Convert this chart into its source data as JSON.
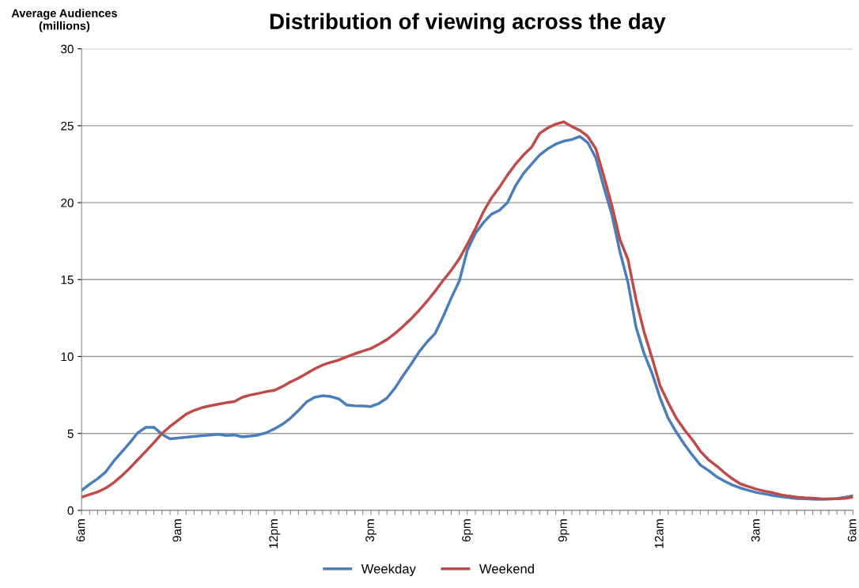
{
  "chart_data": {
    "type": "line",
    "title": "Distribution of viewing across the day",
    "ylabel": "Average Audiences\n(millions)",
    "categories": [
      "6am",
      null,
      null,
      null,
      null,
      null,
      null,
      null,
      null,
      null,
      null,
      null,
      "9am",
      null,
      null,
      null,
      null,
      null,
      null,
      null,
      null,
      null,
      null,
      null,
      "12pm",
      null,
      null,
      null,
      null,
      null,
      null,
      null,
      null,
      null,
      null,
      null,
      "3pm",
      null,
      null,
      null,
      null,
      null,
      null,
      null,
      null,
      null,
      null,
      null,
      "6pm",
      null,
      null,
      null,
      null,
      null,
      null,
      null,
      null,
      null,
      null,
      null,
      "9pm",
      null,
      null,
      null,
      null,
      null,
      null,
      null,
      null,
      null,
      null,
      null,
      "12am",
      null,
      null,
      null,
      null,
      null,
      null,
      null,
      null,
      null,
      null,
      null,
      "3am",
      null,
      null,
      null,
      null,
      null,
      null,
      null,
      null,
      null,
      null,
      null,
      "6am"
    ],
    "ylim": [
      0,
      30
    ],
    "yticks": [
      0,
      5,
      10,
      15,
      20,
      25,
      30
    ],
    "grid": "y",
    "legend": "bottom",
    "marker": "none",
    "line_style": "solid",
    "series": [
      {
        "name": "Weekday",
        "color": "#4a7ebb",
        "values": [
          1.3,
          1.7,
          2.06,
          2.5,
          3.2,
          3.8,
          4.4,
          5.05,
          5.4,
          5.4,
          4.95,
          4.65,
          4.7,
          4.75,
          4.8,
          4.86,
          4.9,
          4.95,
          4.87,
          4.9,
          4.78,
          4.83,
          4.9,
          5.05,
          5.3,
          5.6,
          6.0,
          6.5,
          7.05,
          7.35,
          7.45,
          7.4,
          7.25,
          6.85,
          6.8,
          6.78,
          6.75,
          6.95,
          7.3,
          7.95,
          8.75,
          9.5,
          10.3,
          10.95,
          11.5,
          12.6,
          13.8,
          14.9,
          16.9,
          18.0,
          18.7,
          19.25,
          19.5,
          20.0,
          21.1,
          21.9,
          22.5,
          23.1,
          23.5,
          23.8,
          24.0,
          24.1,
          24.3,
          23.9,
          22.9,
          21.0,
          19.2,
          16.8,
          14.8,
          11.9,
          10.2,
          8.9,
          7.3,
          6.0,
          5.1,
          4.3,
          3.6,
          2.95,
          2.6,
          2.2,
          1.9,
          1.65,
          1.45,
          1.3,
          1.16,
          1.07,
          0.97,
          0.9,
          0.83,
          0.77,
          0.75,
          0.73,
          0.72,
          0.74,
          0.77,
          0.85,
          0.95
        ]
      },
      {
        "name": "Weekend",
        "color": "#be4b48",
        "values": [
          0.86,
          1.03,
          1.2,
          1.45,
          1.8,
          2.25,
          2.75,
          3.3,
          3.85,
          4.4,
          5.0,
          5.45,
          5.85,
          6.25,
          6.5,
          6.68,
          6.8,
          6.9,
          7.0,
          7.07,
          7.35,
          7.5,
          7.6,
          7.72,
          7.8,
          8.05,
          8.35,
          8.6,
          8.9,
          9.2,
          9.45,
          9.62,
          9.77,
          9.98,
          10.18,
          10.35,
          10.52,
          10.8,
          11.1,
          11.5,
          11.95,
          12.45,
          13.0,
          13.6,
          14.25,
          14.95,
          15.6,
          16.35,
          17.3,
          18.3,
          19.4,
          20.3,
          21.0,
          21.8,
          22.5,
          23.1,
          23.6,
          24.5,
          24.85,
          25.1,
          25.25,
          24.95,
          24.7,
          24.3,
          23.5,
          21.7,
          19.8,
          17.6,
          16.3,
          13.7,
          11.6,
          9.9,
          8.1,
          7.0,
          6.0,
          5.25,
          4.6,
          3.85,
          3.3,
          2.9,
          2.45,
          2.05,
          1.72,
          1.55,
          1.38,
          1.25,
          1.15,
          1.02,
          0.93,
          0.86,
          0.82,
          0.8,
          0.76,
          0.74,
          0.75,
          0.78,
          0.86
        ]
      }
    ]
  }
}
